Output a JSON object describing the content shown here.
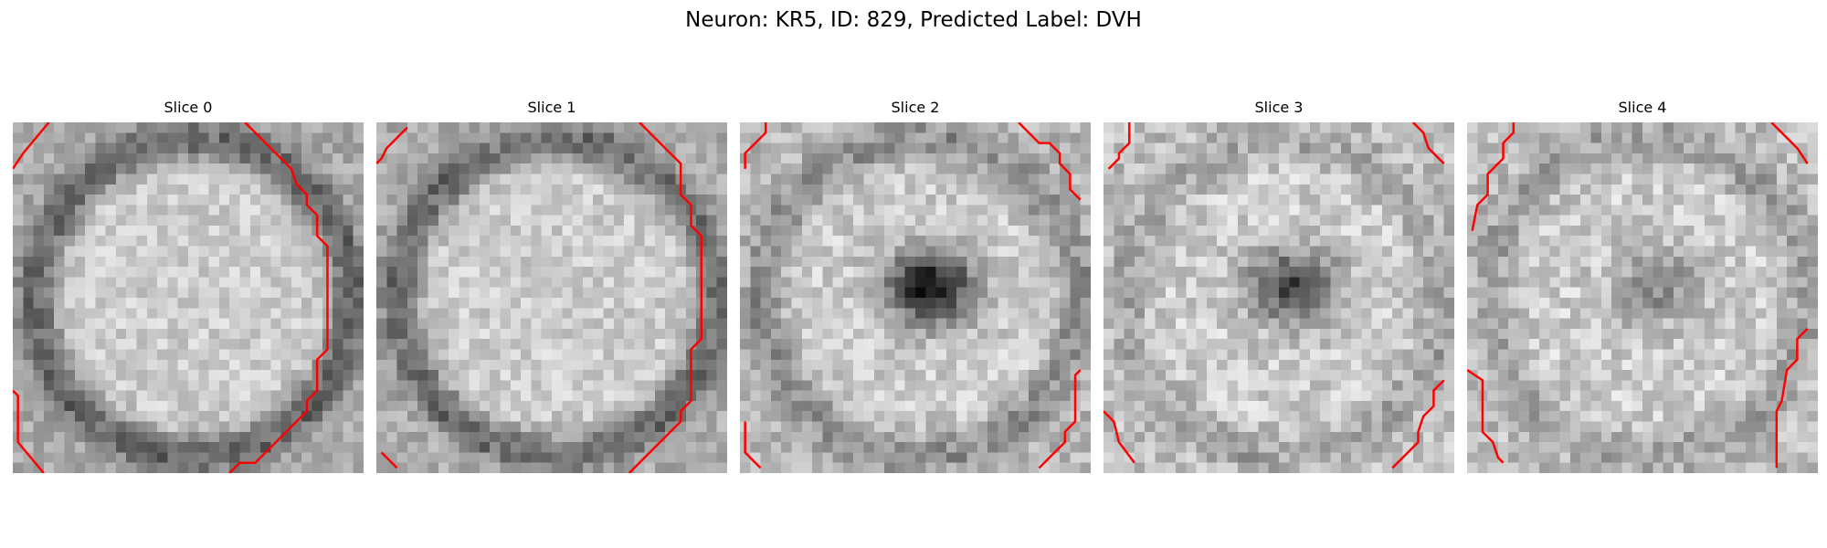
{
  "figure": {
    "title": "Neuron: KR5, ID: 829, Predicted Label: DVH",
    "contour_color": "#ff0000",
    "colormap": "gray",
    "panels": [
      {
        "title": "Slice 0",
        "dark_center": 0,
        "ring": 0.9,
        "contours": [
          [
            [
              3.5,
              0
            ],
            [
              1,
              3
            ],
            [
              0,
              4.5
            ]
          ],
          [
            [
              22.5,
              0
            ],
            [
              25,
              2.5
            ],
            [
              27,
              4.5
            ],
            [
              27.5,
              6
            ],
            [
              28.5,
              7
            ],
            [
              28.5,
              8
            ],
            [
              29.5,
              9
            ],
            [
              29.5,
              11
            ],
            [
              30.5,
              12
            ],
            [
              30.5,
              22
            ],
            [
              29.5,
              23
            ],
            [
              29.5,
              26
            ],
            [
              28.5,
              27
            ],
            [
              28.5,
              28
            ],
            [
              27.5,
              29
            ],
            [
              25.5,
              31
            ],
            [
              24.5,
              32
            ],
            [
              23.5,
              33
            ],
            [
              22,
              33
            ],
            [
              21,
              34
            ]
          ],
          [
            [
              0,
              26
            ],
            [
              0.5,
              26.5
            ],
            [
              0.5,
              31
            ],
            [
              3,
              34
            ]
          ]
        ]
      },
      {
        "title": "Slice 1",
        "dark_center": 0,
        "ring": 0.85,
        "contours": [
          [
            [
              3,
              0.5
            ],
            [
              1,
              2.5
            ],
            [
              0.5,
              3.5
            ],
            [
              0,
              4
            ]
          ],
          [
            [
              25.5,
              0
            ],
            [
              28,
              2.5
            ],
            [
              29.5,
              4
            ],
            [
              29.5,
              7
            ],
            [
              30.5,
              8
            ],
            [
              30.5,
              10
            ],
            [
              31.5,
              11
            ],
            [
              31.5,
              21
            ],
            [
              30.5,
              22
            ],
            [
              30.5,
              27
            ],
            [
              29.5,
              28
            ],
            [
              29.5,
              29
            ],
            [
              27,
              31.5
            ],
            [
              24.5,
              34
            ]
          ],
          [
            [
              0.5,
              32
            ],
            [
              2,
              33.5
            ]
          ]
        ]
      },
      {
        "title": "Slice 2",
        "dark_center": 1.0,
        "ring": 0.55,
        "contours": [
          [
            [
              2.5,
              0
            ],
            [
              2.5,
              1
            ],
            [
              1,
              2.5
            ],
            [
              0.5,
              3
            ],
            [
              0.5,
              4.5
            ]
          ],
          [
            [
              27,
              0
            ],
            [
              29,
              2
            ],
            [
              30,
              2
            ],
            [
              31,
              3
            ],
            [
              31,
              4
            ],
            [
              32,
              5
            ],
            [
              32,
              6.5
            ],
            [
              33,
              7.5
            ]
          ],
          [
            [
              33,
              24
            ],
            [
              32.5,
              24.5
            ],
            [
              32.5,
              29
            ],
            [
              31.5,
              30
            ],
            [
              31.5,
              31
            ],
            [
              30,
              32.5
            ],
            [
              29,
              33.5
            ]
          ],
          [
            [
              0.5,
              29
            ],
            [
              0.5,
              32
            ],
            [
              2,
              33.5
            ]
          ]
        ]
      },
      {
        "title": "Slice 3",
        "dark_center": 0.75,
        "ring": 0.35,
        "contours": [
          [
            [
              2.5,
              0
            ],
            [
              2.5,
              2
            ],
            [
              1.5,
              3
            ],
            [
              1.5,
              3.5
            ],
            [
              0.5,
              4.5
            ]
          ],
          [
            [
              30,
              0
            ],
            [
              31,
              1
            ],
            [
              31.5,
              2.5
            ],
            [
              33,
              4
            ]
          ],
          [
            [
              0,
              28
            ],
            [
              1,
              29
            ],
            [
              1.5,
              31
            ],
            [
              3,
              33
            ]
          ],
          [
            [
              33,
              25
            ],
            [
              32,
              26
            ],
            [
              32,
              27.5
            ],
            [
              31,
              28.5
            ],
            [
              30.5,
              30
            ],
            [
              30.5,
              31
            ],
            [
              28,
              33.5
            ]
          ]
        ]
      },
      {
        "title": "Slice 4",
        "dark_center": 0.35,
        "ring": 0.4,
        "contours": [
          [
            [
              4.5,
              0
            ],
            [
              4.5,
              1
            ],
            [
              3.5,
              2
            ],
            [
              3.5,
              3.5
            ],
            [
              2,
              5
            ],
            [
              2,
              7
            ],
            [
              1.5,
              7.5
            ],
            [
              1,
              8
            ],
            [
              0.5,
              10.5
            ]
          ],
          [
            [
              29.5,
              0
            ],
            [
              32,
              2.5
            ],
            [
              33,
              4
            ]
          ],
          [
            [
              0,
              24
            ],
            [
              1.5,
              25
            ],
            [
              1.5,
              30
            ],
            [
              2.5,
              31
            ],
            [
              3,
              32.5
            ],
            [
              3.5,
              33
            ]
          ],
          [
            [
              33,
              20
            ],
            [
              32,
              21
            ],
            [
              32,
              23
            ],
            [
              31,
              24
            ],
            [
              30.5,
              27
            ],
            [
              30,
              28
            ],
            [
              30,
              33.5
            ]
          ]
        ]
      }
    ]
  }
}
